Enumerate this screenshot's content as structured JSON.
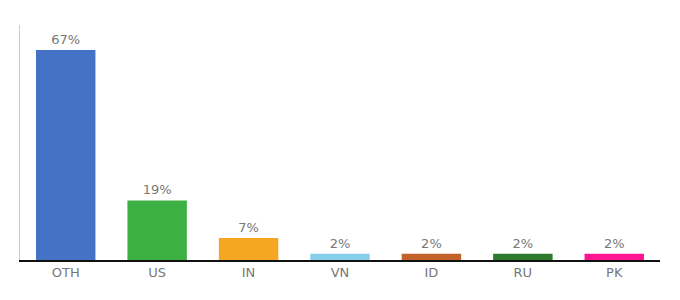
{
  "chart_data": {
    "type": "bar",
    "categories": [
      "OTH",
      "US",
      "IN",
      "VN",
      "ID",
      "RU",
      "PK"
    ],
    "values": [
      67,
      19,
      7,
      2,
      2,
      2,
      2
    ],
    "value_labels": [
      "67%",
      "19%",
      "7%",
      "2%",
      "2%",
      "2%",
      "2%"
    ],
    "colors": [
      "#4472c4",
      "#3cb043",
      "#f5a623",
      "#87ceeb",
      "#c0622a",
      "#2d7a2d",
      "#ff1493"
    ],
    "ylim": [
      0,
      75
    ],
    "grid": false,
    "data_labels": true,
    "tick_labels": "x"
  }
}
